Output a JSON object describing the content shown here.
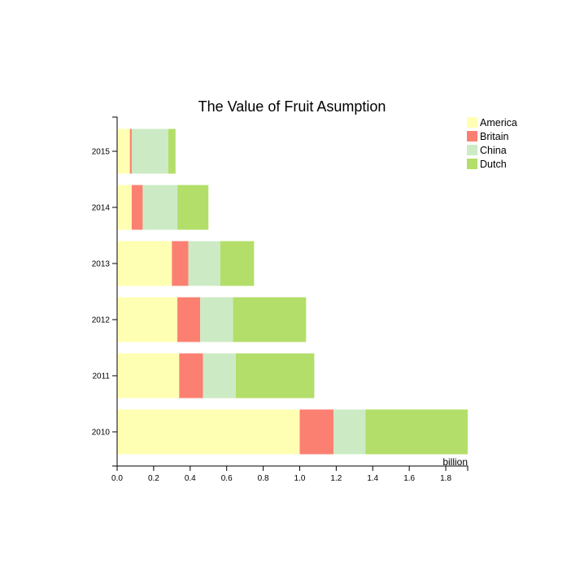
{
  "chart_data": {
    "type": "bar",
    "orientation": "horizontal",
    "stacked": true,
    "title": "The Value of Fruit Asumption",
    "xlabel": "billion",
    "ylabel": "",
    "xlim": [
      0,
      1.92
    ],
    "x_ticks": [
      "0.0",
      "0.2",
      "0.4",
      "0.6",
      "0.8",
      "1.0",
      "1.2",
      "1.4",
      "1.6",
      "1.8"
    ],
    "categories": [
      "2010",
      "2011",
      "2012",
      "2013",
      "2014",
      "2015"
    ],
    "series": [
      {
        "name": "America",
        "color": "#ffffb3",
        "values": [
          1.0,
          0.34,
          0.33,
          0.3,
          0.08,
          0.07
        ]
      },
      {
        "name": "Britain",
        "color": "#fb8072",
        "values": [
          0.185,
          0.13,
          0.125,
          0.09,
          0.06,
          0.01
        ]
      },
      {
        "name": "China",
        "color": "#ccebc5",
        "values": [
          0.175,
          0.18,
          0.18,
          0.175,
          0.19,
          0.2
        ]
      },
      {
        "name": "Dutch",
        "color": "#b3de69",
        "values": [
          0.56,
          0.43,
          0.4,
          0.185,
          0.17,
          0.04
        ]
      }
    ],
    "legend_position": "top-right",
    "grid": false
  }
}
